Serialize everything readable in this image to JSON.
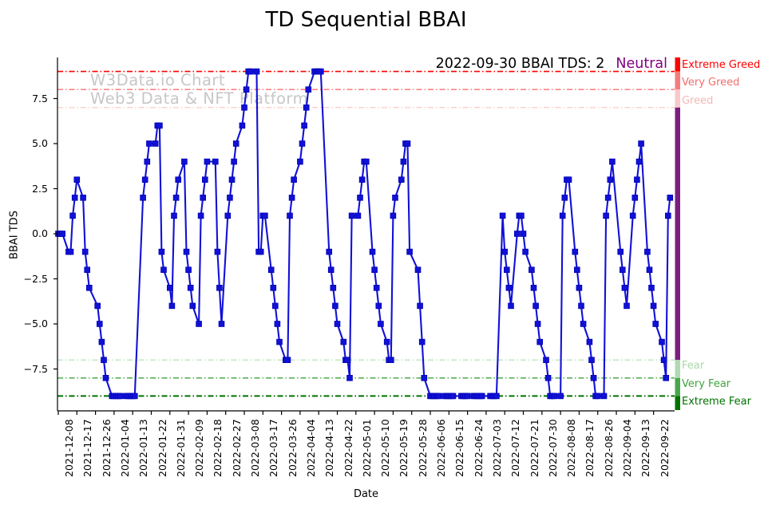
{
  "title": "TD Sequential BBAI",
  "annotation": {
    "text": "2022-09-30 BBAI TDS: 2",
    "status": "Neutral",
    "status_color": "#800080"
  },
  "watermark": {
    "line1": "W3Data.io Chart",
    "line2": "Web3 Data & NFT Platform"
  },
  "chart_data": {
    "type": "line",
    "title": "TD Sequential BBAI",
    "xlabel": "Date",
    "ylabel": "BBAI TDS",
    "legend_position": "none",
    "grid": false,
    "ylim": [
      -9.78,
      9.78
    ],
    "x_start": "2021-12-07",
    "x_end": "2022-10-03",
    "line_color": "#1111d6",
    "marker": "square",
    "y_ticks": [
      "7.5",
      "5.0",
      "2.5",
      "0.0",
      "−2.5",
      "−5.0",
      "−7.5"
    ],
    "y_tick_values": [
      7.5,
      5.0,
      2.5,
      0.0,
      -2.5,
      -5.0,
      -7.5
    ],
    "x_ticks": [
      "2021-12-08",
      "2021-12-17",
      "2021-12-26",
      "2022-01-04",
      "2022-01-13",
      "2022-01-22",
      "2022-01-31",
      "2022-02-09",
      "2022-02-18",
      "2022-02-27",
      "2022-03-08",
      "2022-03-17",
      "2022-03-26",
      "2022-04-04",
      "2022-04-13",
      "2022-04-22",
      "2022-05-01",
      "2022-05-10",
      "2022-05-19",
      "2022-05-28",
      "2022-06-06",
      "2022-06-15",
      "2022-06-24",
      "2022-07-03",
      "2022-07-12",
      "2022-07-21",
      "2022-07-30",
      "2022-08-08",
      "2022-08-17",
      "2022-08-26",
      "2022-09-04",
      "2022-09-13",
      "2022-09-22"
    ],
    "thresholds": [
      {
        "value": 9,
        "label": "Extreme Greed",
        "color": "#ff0000",
        "label_color": "#ff0000",
        "width": 1.6
      },
      {
        "value": 8,
        "label": "Very Greed",
        "color": "#ff6e6e",
        "label_color": "#f26d6d",
        "width": 1.3
      },
      {
        "value": 7,
        "label": "Greed",
        "color": "#ffc0c0",
        "label_color": "#f7b6b6",
        "width": 1.2
      },
      {
        "value": -7,
        "label": "Fear",
        "color": "#aedcae",
        "label_color": "#a9d8a9",
        "width": 1.2
      },
      {
        "value": -8,
        "label": "Very Fear",
        "color": "#3da43d",
        "label_color": "#3da43d",
        "width": 1.4
      },
      {
        "value": -9,
        "label": "Extreme Fear",
        "color": "#007200",
        "label_color": "#007200",
        "width": 2.0
      }
    ],
    "colorbar_segments": [
      {
        "from": 9.78,
        "to": 9,
        "color": "#ff0000"
      },
      {
        "from": 9,
        "to": 8,
        "color": "#f47c7c"
      },
      {
        "from": 8,
        "to": 7,
        "color": "#f8c9c9"
      },
      {
        "from": 7,
        "to": -7,
        "color": "#7a1f80"
      },
      {
        "from": -7,
        "to": -8,
        "color": "#b2d9b2"
      },
      {
        "from": -8,
        "to": -9,
        "color": "#4aa64a"
      },
      {
        "from": -9,
        "to": -9.78,
        "color": "#007200"
      }
    ],
    "series": [
      {
        "name": "BBAI TDS",
        "points": [
          [
            "2021-12-08",
            0
          ],
          [
            "2021-12-09",
            0
          ],
          [
            "2021-12-10",
            0
          ],
          [
            "2021-12-13",
            -1
          ],
          [
            "2021-12-14",
            -1
          ],
          [
            "2021-12-15",
            1
          ],
          [
            "2021-12-16",
            2
          ],
          [
            "2021-12-17",
            3
          ],
          [
            "2021-12-20",
            2
          ],
          [
            "2021-12-21",
            -1
          ],
          [
            "2021-12-22",
            -2
          ],
          [
            "2021-12-23",
            -3
          ],
          [
            "2021-12-27",
            -4
          ],
          [
            "2021-12-28",
            -5
          ],
          [
            "2021-12-29",
            -6
          ],
          [
            "2021-12-30",
            -7
          ],
          [
            "2021-12-31",
            -8
          ],
          [
            "2022-01-03",
            -9
          ],
          [
            "2022-01-04",
            -9
          ],
          [
            "2022-01-05",
            -9
          ],
          [
            "2022-01-06",
            -9
          ],
          [
            "2022-01-07",
            -9
          ],
          [
            "2022-01-10",
            -9
          ],
          [
            "2022-01-11",
            -9
          ],
          [
            "2022-01-12",
            -9
          ],
          [
            "2022-01-13",
            -9
          ],
          [
            "2022-01-14",
            -9
          ],
          [
            "2022-01-18",
            2
          ],
          [
            "2022-01-19",
            3
          ],
          [
            "2022-01-20",
            4
          ],
          [
            "2022-01-21",
            5
          ],
          [
            "2022-01-24",
            5
          ],
          [
            "2022-01-25",
            6
          ],
          [
            "2022-01-26",
            6
          ],
          [
            "2022-01-27",
            -1
          ],
          [
            "2022-01-28",
            -2
          ],
          [
            "2022-01-31",
            -3
          ],
          [
            "2022-02-01",
            -4
          ],
          [
            "2022-02-02",
            1
          ],
          [
            "2022-02-03",
            2
          ],
          [
            "2022-02-04",
            3
          ],
          [
            "2022-02-07",
            4
          ],
          [
            "2022-02-08",
            -1
          ],
          [
            "2022-02-09",
            -2
          ],
          [
            "2022-02-10",
            -3
          ],
          [
            "2022-02-11",
            -4
          ],
          [
            "2022-02-14",
            -5
          ],
          [
            "2022-02-15",
            1
          ],
          [
            "2022-02-16",
            2
          ],
          [
            "2022-02-17",
            3
          ],
          [
            "2022-02-18",
            4
          ],
          [
            "2022-02-22",
            4
          ],
          [
            "2022-02-23",
            -1
          ],
          [
            "2022-02-24",
            -3
          ],
          [
            "2022-02-25",
            -5
          ],
          [
            "2022-02-28",
            1
          ],
          [
            "2022-03-01",
            2
          ],
          [
            "2022-03-02",
            3
          ],
          [
            "2022-03-03",
            4
          ],
          [
            "2022-03-04",
            5
          ],
          [
            "2022-03-07",
            6
          ],
          [
            "2022-03-08",
            7
          ],
          [
            "2022-03-09",
            8
          ],
          [
            "2022-03-10",
            9
          ],
          [
            "2022-03-11",
            9
          ],
          [
            "2022-03-14",
            9
          ],
          [
            "2022-03-15",
            -1
          ],
          [
            "2022-03-16",
            -1
          ],
          [
            "2022-03-17",
            1
          ],
          [
            "2022-03-18",
            1
          ],
          [
            "2022-03-21",
            -2
          ],
          [
            "2022-03-22",
            -3
          ],
          [
            "2022-03-23",
            -4
          ],
          [
            "2022-03-24",
            -5
          ],
          [
            "2022-03-25",
            -6
          ],
          [
            "2022-03-28",
            -7
          ],
          [
            "2022-03-29",
            -7
          ],
          [
            "2022-03-30",
            1
          ],
          [
            "2022-03-31",
            2
          ],
          [
            "2022-04-01",
            3
          ],
          [
            "2022-04-04",
            4
          ],
          [
            "2022-04-05",
            5
          ],
          [
            "2022-04-06",
            6
          ],
          [
            "2022-04-07",
            7
          ],
          [
            "2022-04-08",
            8
          ],
          [
            "2022-04-11",
            9
          ],
          [
            "2022-04-12",
            9
          ],
          [
            "2022-04-13",
            9
          ],
          [
            "2022-04-14",
            9
          ],
          [
            "2022-04-18",
            -1
          ],
          [
            "2022-04-19",
            -2
          ],
          [
            "2022-04-20",
            -3
          ],
          [
            "2022-04-21",
            -4
          ],
          [
            "2022-04-22",
            -5
          ],
          [
            "2022-04-25",
            -6
          ],
          [
            "2022-04-26",
            -7
          ],
          [
            "2022-04-27",
            -7
          ],
          [
            "2022-04-28",
            -8
          ],
          [
            "2022-04-29",
            1
          ],
          [
            "2022-05-02",
            1
          ],
          [
            "2022-05-03",
            2
          ],
          [
            "2022-05-04",
            3
          ],
          [
            "2022-05-05",
            4
          ],
          [
            "2022-05-06",
            4
          ],
          [
            "2022-05-09",
            -1
          ],
          [
            "2022-05-10",
            -2
          ],
          [
            "2022-05-11",
            -3
          ],
          [
            "2022-05-12",
            -4
          ],
          [
            "2022-05-13",
            -5
          ],
          [
            "2022-05-16",
            -6
          ],
          [
            "2022-05-17",
            -7
          ],
          [
            "2022-05-18",
            -7
          ],
          [
            "2022-05-19",
            1
          ],
          [
            "2022-05-20",
            2
          ],
          [
            "2022-05-23",
            3
          ],
          [
            "2022-05-24",
            4
          ],
          [
            "2022-05-25",
            5
          ],
          [
            "2022-05-26",
            5
          ],
          [
            "2022-05-27",
            -1
          ],
          [
            "2022-05-31",
            -2
          ],
          [
            "2022-06-01",
            -4
          ],
          [
            "2022-06-02",
            -6
          ],
          [
            "2022-06-03",
            -8
          ],
          [
            "2022-06-06",
            -9
          ],
          [
            "2022-06-07",
            -9
          ],
          [
            "2022-06-08",
            -9
          ],
          [
            "2022-06-09",
            -9
          ],
          [
            "2022-06-10",
            -9
          ],
          [
            "2022-06-13",
            -9
          ],
          [
            "2022-06-14",
            -9
          ],
          [
            "2022-06-15",
            -9
          ],
          [
            "2022-06-16",
            -9
          ],
          [
            "2022-06-17",
            -9
          ],
          [
            "2022-06-21",
            -9
          ],
          [
            "2022-06-22",
            -9
          ],
          [
            "2022-06-23",
            -9
          ],
          [
            "2022-06-24",
            -9
          ],
          [
            "2022-06-27",
            -9
          ],
          [
            "2022-06-28",
            -9
          ],
          [
            "2022-06-29",
            -9
          ],
          [
            "2022-06-30",
            -9
          ],
          [
            "2022-07-01",
            -9
          ],
          [
            "2022-07-05",
            -9
          ],
          [
            "2022-07-06",
            -9
          ],
          [
            "2022-07-07",
            -9
          ],
          [
            "2022-07-08",
            -9
          ],
          [
            "2022-07-11",
            1
          ],
          [
            "2022-07-12",
            -1
          ],
          [
            "2022-07-13",
            -2
          ],
          [
            "2022-07-14",
            -3
          ],
          [
            "2022-07-15",
            -4
          ],
          [
            "2022-07-18",
            0
          ],
          [
            "2022-07-19",
            1
          ],
          [
            "2022-07-20",
            1
          ],
          [
            "2022-07-21",
            0
          ],
          [
            "2022-07-22",
            -1
          ],
          [
            "2022-07-25",
            -2
          ],
          [
            "2022-07-26",
            -3
          ],
          [
            "2022-07-27",
            -4
          ],
          [
            "2022-07-28",
            -5
          ],
          [
            "2022-07-29",
            -6
          ],
          [
            "2022-08-01",
            -7
          ],
          [
            "2022-08-02",
            -8
          ],
          [
            "2022-08-03",
            -9
          ],
          [
            "2022-08-04",
            -9
          ],
          [
            "2022-08-05",
            -9
          ],
          [
            "2022-08-08",
            -9
          ],
          [
            "2022-08-09",
            1
          ],
          [
            "2022-08-10",
            2
          ],
          [
            "2022-08-11",
            3
          ],
          [
            "2022-08-12",
            3
          ],
          [
            "2022-08-15",
            -1
          ],
          [
            "2022-08-16",
            -2
          ],
          [
            "2022-08-17",
            -3
          ],
          [
            "2022-08-18",
            -4
          ],
          [
            "2022-08-19",
            -5
          ],
          [
            "2022-08-22",
            -6
          ],
          [
            "2022-08-23",
            -7
          ],
          [
            "2022-08-24",
            -8
          ],
          [
            "2022-08-25",
            -9
          ],
          [
            "2022-08-26",
            -9
          ],
          [
            "2022-08-29",
            -9
          ],
          [
            "2022-08-30",
            1
          ],
          [
            "2022-08-31",
            2
          ],
          [
            "2022-09-01",
            3
          ],
          [
            "2022-09-02",
            4
          ],
          [
            "2022-09-06",
            -1
          ],
          [
            "2022-09-07",
            -2
          ],
          [
            "2022-09-08",
            -3
          ],
          [
            "2022-09-09",
            -4
          ],
          [
            "2022-09-12",
            1
          ],
          [
            "2022-09-13",
            2
          ],
          [
            "2022-09-14",
            3
          ],
          [
            "2022-09-15",
            4
          ],
          [
            "2022-09-16",
            5
          ],
          [
            "2022-09-19",
            -1
          ],
          [
            "2022-09-20",
            -2
          ],
          [
            "2022-09-21",
            -3
          ],
          [
            "2022-09-22",
            -4
          ],
          [
            "2022-09-23",
            -5
          ],
          [
            "2022-09-26",
            -6
          ],
          [
            "2022-09-27",
            -7
          ],
          [
            "2022-09-28",
            -8
          ],
          [
            "2022-09-29",
            1
          ],
          [
            "2022-09-30",
            2
          ]
        ]
      }
    ]
  }
}
